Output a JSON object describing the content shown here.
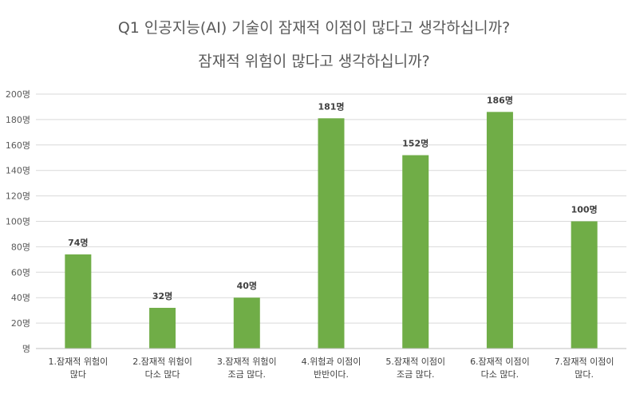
{
  "chart_data": {
    "type": "bar",
    "title": "Q1 인공지능(AI) 기술이 잠재적 이점이 많다고 생각하십니까?",
    "subtitle": "잠재적 위험이 많다고 생각하십니까?",
    "categories": [
      [
        "1.잠재적 위험이",
        "많다"
      ],
      [
        "2.잠재적 위험이",
        "다소 많다"
      ],
      [
        "3.잠재적 위험이",
        "조금 많다."
      ],
      [
        "4.위험과 이점이",
        "반반이다."
      ],
      [
        "5.잠재적 이점이",
        "조금 많다."
      ],
      [
        "6.잠재적 이점이",
        "다소 많다."
      ],
      [
        "7.잠재적 이점이",
        "많다."
      ]
    ],
    "values": [
      74,
      32,
      40,
      181,
      152,
      186,
      100
    ],
    "data_labels": [
      "74명",
      "32명",
      "40명",
      "181명",
      "152명",
      "186명",
      "100명"
    ],
    "y_ticks": [
      0,
      20,
      40,
      60,
      80,
      100,
      120,
      140,
      160,
      180,
      200
    ],
    "y_tick_labels": [
      "명",
      "20명",
      "40명",
      "60명",
      "80명",
      "100명",
      "120명",
      "140명",
      "160명",
      "180명",
      "200명"
    ],
    "ylim": [
      0,
      200
    ],
    "grid": true,
    "legend": "none",
    "bar_color": "#70AD47",
    "grid_color": "#D9D9D9",
    "text_color": "#595959"
  }
}
